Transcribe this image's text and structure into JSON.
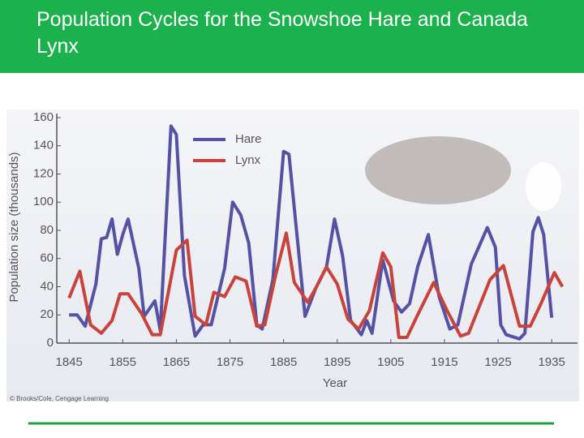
{
  "chart_data": {
    "type": "line",
    "title": "Population Cycles for the Snowshoe Hare and Canada Lynx",
    "x_label": "Year",
    "y_label": "Population size (thousands)",
    "credit": "© Brooks/Cole, Cengage Learning",
    "xlim": [
      1843,
      1938
    ],
    "xticks": [
      1845,
      1855,
      1865,
      1875,
      1885,
      1895,
      1905,
      1915,
      1925,
      1935
    ],
    "ylim": [
      0,
      160
    ],
    "yticks": [
      0,
      20,
      40,
      60,
      80,
      100,
      120,
      140,
      160
    ],
    "legend": "top-left",
    "series": [
      {
        "name": "Hare",
        "color": "#5552a3",
        "x": [
          1845,
          1846.5,
          1848,
          1850,
          1851,
          1852,
          1853,
          1854,
          1855,
          1856,
          1858,
          1859,
          1861,
          1862,
          1864,
          1865,
          1866.5,
          1868.5,
          1870,
          1871.5,
          1874,
          1875.5,
          1877,
          1878.5,
          1880,
          1881,
          1883,
          1885,
          1886,
          1889,
          1891,
          1893,
          1894.5,
          1896,
          1897.5,
          1899.5,
          1900.5,
          1901.5,
          1903.5,
          1905.5,
          1907,
          1908.5,
          1910,
          1912,
          1914,
          1916,
          1917.5,
          1920,
          1923,
          1924.5,
          1925.5,
          1926.5,
          1929,
          1930,
          1931.5,
          1932.5,
          1933.5,
          1935
        ],
        "values": [
          20,
          20,
          12,
          42,
          74,
          75,
          88,
          63,
          77,
          88,
          53,
          19,
          30,
          9,
          154,
          148,
          48,
          5,
          13,
          13,
          53,
          100,
          91,
          71,
          13,
          10,
          45,
          136,
          134,
          19,
          39,
          54,
          88,
          62,
          16,
          6,
          16,
          7,
          59,
          30,
          22,
          28,
          54,
          77,
          33,
          10,
          13,
          56,
          82,
          68,
          13,
          6,
          3,
          7,
          79,
          89,
          77,
          18
        ]
      },
      {
        "name": "Lynx",
        "color": "#c8433b",
        "x": [
          1845,
          1847,
          1849,
          1851,
          1853,
          1854.5,
          1856,
          1858.5,
          1860.5,
          1862,
          1865,
          1867,
          1868.5,
          1870.5,
          1872,
          1874,
          1876,
          1878,
          1880,
          1881.5,
          1883.5,
          1885.5,
          1887,
          1889.5,
          1891,
          1893,
          1895,
          1897,
          1899,
          1901,
          1903.5,
          1905,
          1906.5,
          1908,
          1910,
          1913,
          1915.5,
          1918,
          1919.5,
          1923.5,
          1926,
          1929,
          1931,
          1933,
          1935.5,
          1937
        ],
        "values": [
          32,
          51,
          13,
          7,
          16,
          35,
          35,
          21,
          6,
          6,
          66,
          73,
          19,
          13,
          36,
          33,
          47,
          44,
          12,
          13,
          48,
          78,
          43,
          29,
          39,
          54,
          42,
          17,
          10,
          23,
          64,
          54,
          4,
          4,
          20,
          43,
          23,
          5,
          7,
          45,
          55,
          12,
          12,
          28,
          50,
          40
        ]
      }
    ]
  }
}
